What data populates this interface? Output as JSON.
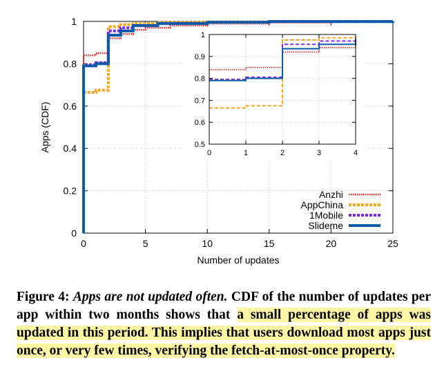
{
  "chart_data": {
    "type": "line",
    "ylabel": "Apps (CDF)",
    "xlabel": "Number of updates",
    "xlim": [
      0,
      25
    ],
    "ylim": [
      0,
      1
    ],
    "x_ticks": [
      "0",
      "5",
      "10",
      "15",
      "20",
      "25"
    ],
    "y_ticks": [
      "0",
      "0.2",
      "0.4",
      "0.6",
      "0.8",
      "1"
    ],
    "series": [
      {
        "name": "Anzhi",
        "color": "#e32222",
        "style": "dotted",
        "x": [
          0,
          1,
          2,
          3,
          4,
          5,
          7,
          10,
          15,
          20,
          24
        ],
        "y": [
          0.84,
          0.85,
          0.92,
          0.94,
          0.96,
          0.97,
          0.98,
          0.99,
          0.995,
          0.998,
          1.0
        ]
      },
      {
        "name": "AppChina",
        "color": "#f5a623",
        "style": "dashed",
        "x": [
          0,
          1,
          2,
          3,
          4,
          6,
          10,
          15,
          25
        ],
        "y": [
          0.665,
          0.675,
          0.975,
          0.985,
          0.99,
          0.995,
          0.998,
          0.999,
          1.0
        ]
      },
      {
        "name": "1Mobile",
        "color": "#7d2ae8",
        "style": "dashed",
        "x": [
          0,
          1,
          2,
          3,
          4,
          6,
          10,
          15,
          25
        ],
        "y": [
          0.795,
          0.805,
          0.955,
          0.97,
          0.98,
          0.99,
          0.996,
          0.999,
          1.0
        ]
      },
      {
        "name": "Slideme",
        "color": "#0a5aa8",
        "style": "solid",
        "x": [
          0,
          1,
          2,
          3,
          4,
          6,
          10,
          15,
          25
        ],
        "y": [
          0.79,
          0.8,
          0.935,
          0.955,
          0.98,
          0.99,
          0.996,
          0.999,
          1.0
        ]
      }
    ],
    "inset": {
      "xlim": [
        0,
        4
      ],
      "ylim": [
        0.5,
        1
      ],
      "x_ticks": [
        "0",
        "1",
        "2",
        "3",
        "4"
      ],
      "y_ticks": [
        "0.5",
        "0.6",
        "0.7",
        "0.8",
        "0.9",
        "1"
      ]
    },
    "legend": "bottom-right"
  },
  "caption": {
    "label": "Figure 4:",
    "title": "Apps are not updated often.",
    "text_before": "CDF of the number of updates per app within two months shows that ",
    "highlight": "a small percentage of apps was updated in this period. This implies that users download most apps just once, or very few times, verifying the fetch-at-most-once property.",
    "highlight_color": "#fdf6a6"
  }
}
